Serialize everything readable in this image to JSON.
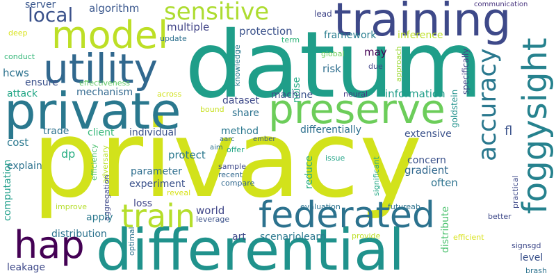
{
  "words": [
    {
      "text": "privacy",
      "color": "#d2e21b"
    },
    {
      "text": "datum",
      "color": "#1f9e89"
    },
    {
      "text": "differential",
      "color": "#20928c"
    },
    {
      "text": "private",
      "color": "#2a788e"
    },
    {
      "text": "training",
      "color": "#3e4989"
    },
    {
      "text": "preserve",
      "color": "#6ccd5a"
    },
    {
      "text": "federated",
      "color": "#2c728e"
    },
    {
      "text": "model",
      "color": "#bddf26"
    },
    {
      "text": "utility",
      "color": "#31688e"
    },
    {
      "text": "hap",
      "color": "#440154"
    },
    {
      "text": "train",
      "color": "#b5de2b"
    },
    {
      "text": "foggysight",
      "color": "#26828e"
    },
    {
      "text": "sensitive",
      "color": "#addc30"
    },
    {
      "text": "local",
      "color": "#3b528b"
    },
    {
      "text": "accuracy",
      "color": "#2a788e"
    },
    {
      "text": "server",
      "color": "#39568c"
    },
    {
      "text": "algorithm",
      "color": "#39568c"
    },
    {
      "text": "lead",
      "color": "#404688"
    },
    {
      "text": "communication",
      "color": "#46337e"
    },
    {
      "text": "deep",
      "color": "#d8e219"
    },
    {
      "text": "update",
      "color": "#2d708e"
    },
    {
      "text": "multiple",
      "color": "#414487"
    },
    {
      "text": "protection",
      "color": "#3b528b"
    },
    {
      "text": "framework",
      "color": "#287d8e"
    },
    {
      "text": "inference",
      "color": "#bddf26"
    },
    {
      "text": "term",
      "color": "#31b57b"
    },
    {
      "text": "global",
      "color": "#6ece58"
    },
    {
      "text": "may",
      "color": "#440154"
    },
    {
      "text": "conduct",
      "color": "#35b779"
    },
    {
      "text": "knowledge",
      "color": "#2a788e"
    },
    {
      "text": "due",
      "color": "#404688"
    },
    {
      "text": "approach",
      "color": "#9fda3a"
    },
    {
      "text": "specifically",
      "color": "#414487"
    },
    {
      "text": "noise",
      "color": "#22a884"
    },
    {
      "text": "risk",
      "color": "#2e6e8e"
    },
    {
      "text": "hcws",
      "color": "#2c728e"
    },
    {
      "text": "ensure",
      "color": "#3b528b"
    },
    {
      "text": "effectiveness",
      "color": "#5ec962"
    },
    {
      "text": "attack",
      "color": "#21a685"
    },
    {
      "text": "mechanism",
      "color": "#31688e"
    },
    {
      "text": "across",
      "color": "#d0e11c"
    },
    {
      "text": "machine",
      "color": "#3b528b"
    },
    {
      "text": "neural",
      "color": "#443983"
    },
    {
      "text": "information",
      "color": "#1f9e89"
    },
    {
      "text": "bound",
      "color": "#c8e020"
    },
    {
      "text": "share",
      "color": "#2c728e"
    },
    {
      "text": "dataset",
      "color": "#3e4989"
    },
    {
      "text": "goldstein",
      "color": "#21918c"
    },
    {
      "text": "trade",
      "color": "#2c728e"
    },
    {
      "text": "client",
      "color": "#35b779"
    },
    {
      "text": "individual",
      "color": "#3b528b"
    },
    {
      "text": "method",
      "color": "#2a788e"
    },
    {
      "text": "differentially",
      "color": "#2d708e"
    },
    {
      "text": "extensive",
      "color": "#3b528b"
    },
    {
      "text": "fl",
      "color": "#3b528b"
    },
    {
      "text": "cost",
      "color": "#2a788e"
    },
    {
      "text": "aarc",
      "color": "#31688e"
    },
    {
      "text": "ember",
      "color": "#39568c"
    },
    {
      "text": "aim",
      "color": "#2c728e"
    },
    {
      "text": "offer",
      "color": "#21a685"
    },
    {
      "text": "dp",
      "color": "#27ad81"
    },
    {
      "text": "efficiency",
      "color": "#4ac16d"
    },
    {
      "text": "adversary",
      "color": "#b8de29"
    },
    {
      "text": "protect",
      "color": "#2a788e"
    },
    {
      "text": "concern",
      "color": "#3b528b"
    },
    {
      "text": "issue",
      "color": "#20a386"
    },
    {
      "text": "gradient",
      "color": "#31688e"
    },
    {
      "text": "significant",
      "color": "#22a884"
    },
    {
      "text": "explain",
      "color": "#2c728e"
    },
    {
      "text": "parameter",
      "color": "#2e6e8e"
    },
    {
      "text": "sample",
      "color": "#3e4989"
    },
    {
      "text": "recent",
      "color": "#31688e"
    },
    {
      "text": "compare",
      "color": "#31688e"
    },
    {
      "text": "reduce",
      "color": "#27ad81"
    },
    {
      "text": "often",
      "color": "#2c728e"
    },
    {
      "text": "experiment",
      "color": "#3b528b"
    },
    {
      "text": "reveal",
      "color": "#d8e219"
    },
    {
      "text": "aggregation",
      "color": "#3e4989"
    },
    {
      "text": "computation",
      "color": "#1f9e89"
    },
    {
      "text": "practical",
      "color": "#3e4989"
    },
    {
      "text": "loss",
      "color": "#404688"
    },
    {
      "text": "improve",
      "color": "#b5de2b"
    },
    {
      "text": "apply",
      "color": "#2a788e"
    },
    {
      "text": "evaluation",
      "color": "#2c728e"
    },
    {
      "text": "futureab",
      "color": "#2c728e"
    },
    {
      "text": "world",
      "color": "#404688"
    },
    {
      "text": "leverage",
      "color": "#3b528b"
    },
    {
      "text": "distribute",
      "color": "#4ac16d"
    },
    {
      "text": "better",
      "color": "#3e4989"
    },
    {
      "text": "optimal",
      "color": "#2c728e"
    },
    {
      "text": "distribution",
      "color": "#2c728e"
    },
    {
      "text": "art",
      "color": "#3e4989"
    },
    {
      "text": "scenariolearn",
      "color": "#2a788e"
    },
    {
      "text": "provide",
      "color": "#bddf26"
    },
    {
      "text": "efficient",
      "color": "#d8e219"
    },
    {
      "text": "level",
      "color": "#3b528b"
    },
    {
      "text": "signsgd",
      "color": "#3e4989"
    },
    {
      "text": "leakage",
      "color": "#3e4989"
    },
    {
      "text": "brash",
      "color": "#2c728e"
    }
  ]
}
